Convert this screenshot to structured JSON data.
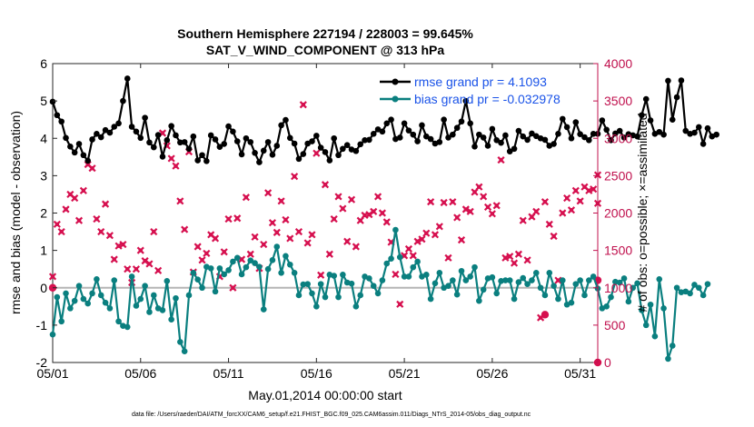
{
  "colors": {
    "rmse": "#000000",
    "bias": "#0a7f7f",
    "obs": "#d6104f",
    "legend_text": "#1a53e8",
    "zero_line": "#b5b5b5",
    "right_axis": "#c0114e"
  },
  "chart_data": {
    "type": "line",
    "title": "Southern Hemisphere 227194 / 228003 = 99.645%",
    "subtitle": "SAT_V_WIND_COMPONENT @ 313 hPa",
    "xlabel": "May.01,2014 00:00:00 start",
    "ylabel": "rmse and bias (model - observation)",
    "y2label": "# of obs: o=possible; ×=assimilated",
    "footnote": "data file: /Users/raeder/DAI/ATM_forcXX/CAM6_setup/f.e21.FHIST_BGC.f09_025.CAM6assim.011/Diags_NTrS_2014-05/obs_diag_output.nc",
    "xlim": [
      1,
      32
    ],
    "xticks": [
      1,
      6,
      11,
      16,
      21,
      26,
      31
    ],
    "xtick_labels": [
      "05/01",
      "05/06",
      "05/11",
      "05/16",
      "05/21",
      "05/26",
      "05/31"
    ],
    "ylim": [
      -2,
      6
    ],
    "yticks": [
      -2,
      -1,
      0,
      1,
      2,
      3,
      4,
      5,
      6
    ],
    "y2lim": [
      0,
      4000
    ],
    "y2ticks": [
      0,
      500,
      1000,
      1500,
      2000,
      2500,
      3000,
      3500,
      4000
    ],
    "grid": false,
    "legend": {
      "position": "top-right",
      "entries": [
        "rmse grand pr = 4.1093",
        "bias grand pr = -0.032978"
      ]
    },
    "series": [
      {
        "name": "rmse grand pr = 4.1093",
        "axis": "left",
        "x_start": 1,
        "x_step": 0.25,
        "values": [
          4.98,
          4.62,
          4.45,
          4.01,
          3.78,
          3.62,
          3.85,
          3.55,
          3.4,
          3.97,
          4.12,
          4.03,
          4.22,
          4.15,
          4.31,
          4.4,
          5.0,
          5.6,
          4.31,
          4.18,
          4.01,
          4.55,
          3.89,
          3.76,
          4.09,
          3.51,
          3.95,
          4.33,
          4.08,
          3.89,
          3.9,
          3.72,
          4.05,
          3.41,
          3.55,
          3.39,
          4.08,
          3.97,
          3.77,
          3.85,
          4.32,
          4.18,
          3.92,
          3.57,
          4.0,
          3.9,
          3.61,
          3.36,
          3.67,
          3.9,
          3.56,
          3.8,
          4.35,
          4.49,
          4.01,
          3.86,
          3.45,
          3.58,
          3.86,
          3.92,
          4.07,
          3.75,
          3.63,
          3.41,
          4.0,
          3.55,
          3.72,
          3.82,
          3.7,
          3.66,
          3.84,
          3.95,
          3.96,
          4.12,
          4.24,
          4.18,
          4.4,
          4.5,
          3.98,
          4.02,
          4.4,
          4.21,
          4.1,
          3.92,
          4.35,
          4.05,
          3.98,
          3.86,
          3.9,
          4.5,
          4.02,
          4.1,
          4.28,
          4.45,
          5.0,
          4.4,
          3.78,
          4.1,
          4.02,
          3.8,
          4.25,
          3.95,
          3.88,
          4.08,
          3.65,
          3.72,
          4.2,
          4.05,
          3.96,
          4.13,
          4.06,
          4.0,
          3.96,
          3.8,
          3.85,
          4.12,
          4.52,
          4.3,
          4.0,
          4.43,
          4.11,
          4.03,
          3.95,
          4.12,
          4.12,
          4.48,
          4.23,
          3.95,
          4.13,
          4.2,
          4.02,
          4.11,
          4.08,
          4.05,
          4.62,
          5.05,
          4.48,
          4.12,
          4.17,
          4.1,
          5.54,
          4.5,
          5.1,
          5.55,
          4.2,
          4.12,
          4.15,
          4.3,
          3.85,
          4.27,
          4.05,
          4.1
        ]
      },
      {
        "name": "bias grand pr = -0.032978",
        "axis": "left",
        "x_start": 1,
        "x_step": 0.25,
        "values": [
          -1.25,
          -0.25,
          -0.9,
          -0.15,
          -0.55,
          -0.35,
          0.05,
          -0.3,
          -0.42,
          -0.15,
          0.23,
          -0.2,
          -0.4,
          -0.55,
          0.2,
          -0.9,
          -1.02,
          -1.05,
          0.3,
          -0.48,
          -0.3,
          0.05,
          -0.65,
          -0.2,
          -0.55,
          -0.6,
          0.18,
          -0.85,
          -0.28,
          -1.45,
          -1.7,
          -0.2,
          0.4,
          0.22,
          0.0,
          0.56,
          0.52,
          -0.1,
          0.52,
          0.36,
          0.47,
          0.7,
          0.8,
          0.36,
          0.55,
          0.73,
          0.66,
          0.56,
          -0.58,
          0.5,
          0.74,
          1.1,
          0.4,
          0.85,
          0.62,
          0.4,
          -0.2,
          0.09,
          0.1,
          -0.15,
          -0.5,
          0.1,
          -0.25,
          0.35,
          0.32,
          -0.25,
          0.35,
          0.14,
          0.11,
          -0.5,
          -0.2,
          0.3,
          0.25,
          0.05,
          -0.15,
          0.2,
          0.65,
          0.78,
          1.55,
          0.82,
          0.3,
          0.3,
          0.55,
          0.7,
          0.3,
          0.35,
          -0.3,
          0.12,
          0.4,
          0.0,
          0.05,
          0.2,
          -0.18,
          0.45,
          0.2,
          0.3,
          0.55,
          -0.35,
          -0.05,
          0.25,
          0.28,
          -0.15,
          0.18,
          0.2,
          0.2,
          -0.3,
          0.15,
          0.26,
          0.1,
          0.2,
          0.4,
          0.0,
          -0.2,
          0.4,
          0.05,
          -0.3,
          0.2,
          -0.45,
          -0.4,
          0.1,
          0.2,
          -0.2,
          0.2,
          0.3,
          -0.02,
          -0.55,
          -0.5,
          -0.25,
          0.16,
          0.14,
          0.25,
          -0.37,
          0.0,
          0.12,
          -0.6,
          -1.0,
          -0.45,
          -1.3,
          0.23,
          -0.55,
          -1.9,
          -1.55,
          0.0,
          -0.12,
          -0.1,
          -0.15,
          0.08,
          0.0,
          -0.2,
          0.1
        ]
      },
      {
        "name": "assimilated",
        "axis": "right",
        "marker": "x",
        "points": [
          [
            1,
            1150
          ],
          [
            1.25,
            1850
          ],
          [
            1.5,
            1750
          ],
          [
            1.75,
            2050
          ],
          [
            2,
            2250
          ],
          [
            2.25,
            2200
          ],
          [
            2.5,
            1900
          ],
          [
            2.75,
            2300
          ],
          [
            3,
            2650
          ],
          [
            3.25,
            2600
          ],
          [
            3.5,
            1920
          ],
          [
            3.75,
            1750
          ],
          [
            4,
            2120
          ],
          [
            4.25,
            1700
          ],
          [
            4.5,
            1380
          ],
          [
            4.75,
            1560
          ],
          [
            5,
            1580
          ],
          [
            5.25,
            1250
          ],
          [
            5.5,
            1070
          ],
          [
            5.75,
            1250
          ],
          [
            6,
            1500
          ],
          [
            6.25,
            1360
          ],
          [
            6.5,
            1320
          ],
          [
            6.75,
            1750
          ],
          [
            7,
            1230
          ],
          [
            7.25,
            3070
          ],
          [
            7.5,
            2900
          ],
          [
            7.75,
            2730
          ],
          [
            8,
            2630
          ],
          [
            8.25,
            2160
          ],
          [
            8.5,
            1780
          ],
          [
            8.75,
            2820
          ],
          [
            9,
            1210
          ],
          [
            9.25,
            1550
          ],
          [
            9.5,
            1370
          ],
          [
            9.75,
            1460
          ],
          [
            10,
            1710
          ],
          [
            10.25,
            1660
          ],
          [
            10.5,
            1150
          ],
          [
            10.75,
            1480
          ],
          [
            11,
            1920
          ],
          [
            11.25,
            1000
          ],
          [
            11.5,
            1930
          ],
          [
            11.75,
            1380
          ],
          [
            12,
            2210
          ],
          [
            12.25,
            1450
          ],
          [
            12.5,
            1680
          ],
          [
            12.75,
            1260
          ],
          [
            13,
            1580
          ],
          [
            13.25,
            2270
          ],
          [
            13.5,
            1870
          ],
          [
            13.75,
            1740
          ],
          [
            14,
            2160
          ],
          [
            14.25,
            1910
          ],
          [
            14.5,
            1660
          ],
          [
            14.75,
            2490
          ],
          [
            15,
            1750
          ],
          [
            15.25,
            3450
          ],
          [
            15.5,
            1600
          ],
          [
            15.75,
            1710
          ],
          [
            16,
            2800
          ],
          [
            16.25,
            1170
          ],
          [
            16.5,
            2380
          ],
          [
            16.75,
            1450
          ],
          [
            17,
            1920
          ],
          [
            17.25,
            2220
          ],
          [
            17.5,
            2060
          ],
          [
            17.75,
            1620
          ],
          [
            18,
            2180
          ],
          [
            18.25,
            1550
          ],
          [
            18.5,
            1900
          ],
          [
            18.75,
            1970
          ],
          [
            19,
            1980
          ],
          [
            19.25,
            2020
          ],
          [
            19.5,
            2220
          ],
          [
            19.75,
            2000
          ],
          [
            20,
            1880
          ],
          [
            20.25,
            1610
          ],
          [
            20.5,
            1180
          ],
          [
            20.75,
            780
          ],
          [
            21,
            1430
          ],
          [
            21.25,
            1520
          ],
          [
            21.5,
            1430
          ],
          [
            21.75,
            1620
          ],
          [
            22,
            1650
          ],
          [
            22.25,
            1730
          ],
          [
            22.5,
            2150
          ],
          [
            22.75,
            1710
          ],
          [
            23,
            1820
          ],
          [
            23.25,
            2140
          ],
          [
            23.5,
            1400
          ],
          [
            23.75,
            2150
          ],
          [
            24,
            1940
          ],
          [
            24.25,
            1640
          ],
          [
            24.5,
            2050
          ],
          [
            24.75,
            2020
          ],
          [
            25,
            2280
          ],
          [
            25.25,
            2350
          ],
          [
            25.5,
            2220
          ],
          [
            25.75,
            2080
          ],
          [
            26,
            1990
          ],
          [
            26.25,
            2100
          ],
          [
            26.5,
            2710
          ],
          [
            26.75,
            1400
          ],
          [
            27,
            1420
          ],
          [
            27.25,
            1330
          ],
          [
            27.5,
            1450
          ],
          [
            27.75,
            1900
          ],
          [
            28,
            1370
          ],
          [
            28.25,
            1950
          ],
          [
            28.5,
            2020
          ],
          [
            28.75,
            600
          ],
          [
            29,
            2150
          ],
          [
            29.25,
            1850
          ],
          [
            29.5,
            1690
          ],
          [
            29.75,
            1100
          ],
          [
            30,
            2000
          ],
          [
            30.25,
            2200
          ],
          [
            30.5,
            2040
          ],
          [
            30.75,
            2300
          ],
          [
            31,
            2160
          ],
          [
            31.25,
            2350
          ],
          [
            31.5,
            2300
          ],
          [
            31.75,
            2320
          ],
          [
            32,
            2130
          ],
          [
            32.25,
            2510
          ]
        ]
      },
      {
        "name": "possible",
        "axis": "right",
        "marker": "o",
        "points": [
          [
            1,
            1000
          ],
          [
            29,
            640
          ],
          [
            32,
            1100
          ],
          [
            32,
            0
          ]
        ]
      }
    ]
  }
}
